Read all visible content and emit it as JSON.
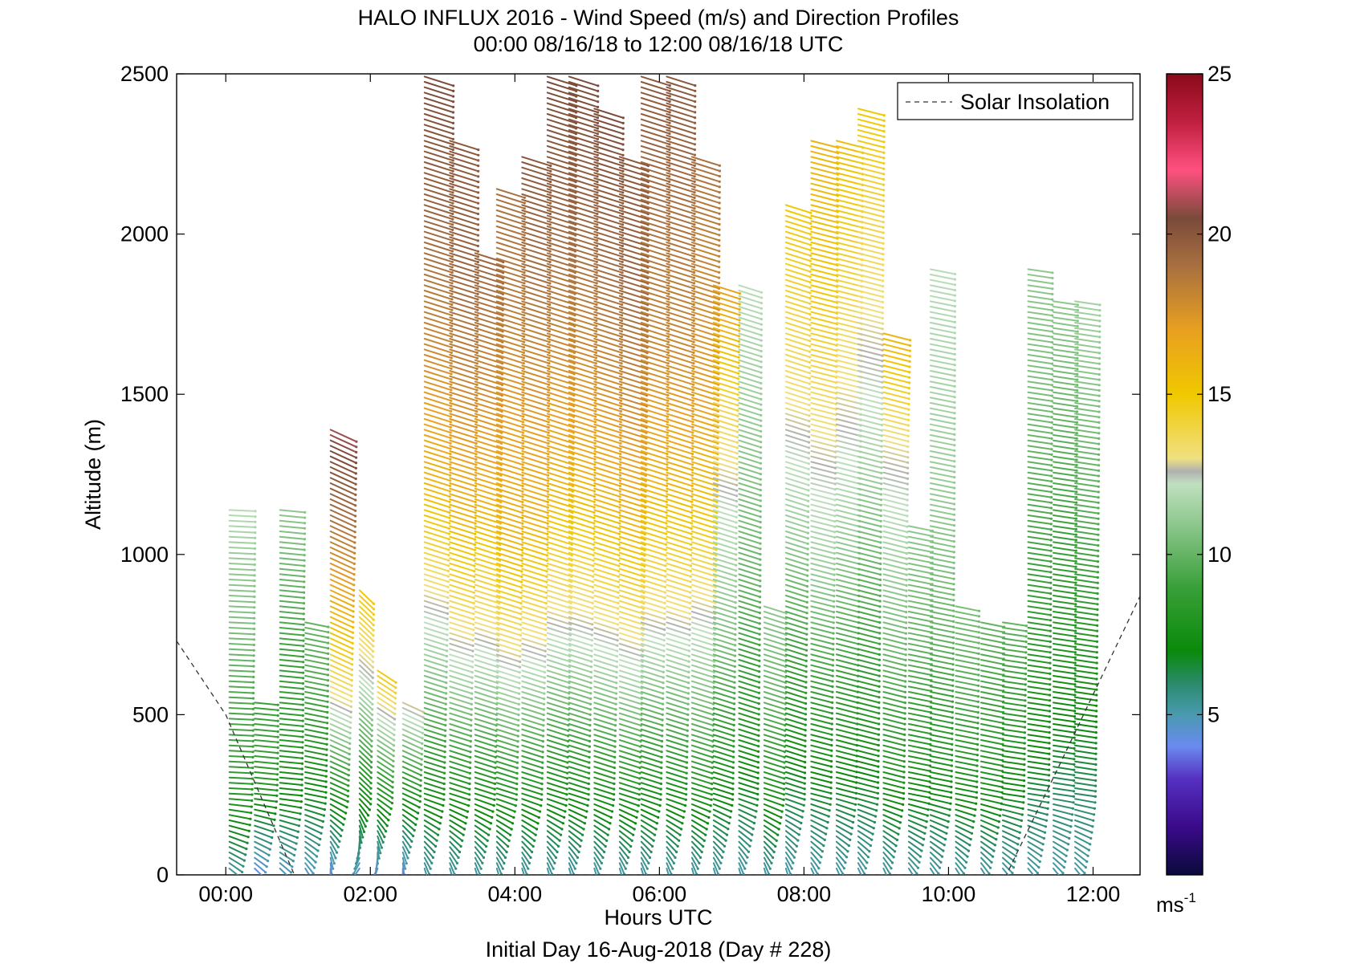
{
  "figure": {
    "title": "HALO INFLUX 2016 - Wind Speed (m/s) and Direction Profiles",
    "subtitle": "00:00 08/16/18 to 12:00 08/16/18  UTC",
    "xlabel": "Hours UTC",
    "ylabel": "Altitude (m)",
    "footer": "Initial Day 16-Aug-2018 (Day # 228)",
    "legend_label": "Solar Insolation",
    "colorbar_unit": "ms",
    "colorbar_unit_exp": "-1"
  },
  "chart_data": {
    "type": "scatter",
    "mark": "wind barbs (direction arrows colored by wind speed)",
    "title": "HALO INFLUX 2016 - Wind Speed (m/s) and Direction Profiles",
    "xlabel": "Hours UTC",
    "ylabel": "Altitude (m)",
    "xlim": [
      -0.68,
      12.65
    ],
    "ylim": [
      0,
      2500
    ],
    "x_ticks": [
      0,
      2,
      4,
      6,
      8,
      10,
      12
    ],
    "x_tick_labels": [
      "00:00",
      "02:00",
      "04:00",
      "06:00",
      "08:00",
      "10:00",
      "12:00"
    ],
    "y_ticks": [
      0,
      500,
      1000,
      1500,
      2000,
      2500
    ],
    "y_tick_labels": [
      "0",
      "500",
      "1000",
      "1500",
      "2000",
      "2500"
    ],
    "grid": false,
    "legend_position": "top-right",
    "colorbar": {
      "range": [
        0,
        25
      ],
      "ticks": [
        5,
        10,
        15,
        20,
        25
      ],
      "unit": "ms-1",
      "stops": [
        [
          0,
          "#0a0a3a"
        ],
        [
          1.5,
          "#3a0a8a"
        ],
        [
          3,
          "#5530c0"
        ],
        [
          4,
          "#6a8af0"
        ],
        [
          5,
          "#4a9ab0"
        ],
        [
          6,
          "#2a8a6a"
        ],
        [
          7,
          "#0a8a0a"
        ],
        [
          9,
          "#3aa03a"
        ],
        [
          11,
          "#90c890"
        ],
        [
          12.2,
          "#c0e0c0"
        ],
        [
          12.6,
          "#b0b0b0"
        ],
        [
          13,
          "#f0e080"
        ],
        [
          15,
          "#f0c800"
        ],
        [
          17,
          "#e8a020"
        ],
        [
          19,
          "#a87040"
        ],
        [
          20.5,
          "#7a4a3a"
        ],
        [
          22,
          "#ff5080"
        ],
        [
          23.5,
          "#c02040"
        ],
        [
          25,
          "#8a0a1a"
        ]
      ]
    },
    "solar_insolation_curve": [
      [
        -0.68,
        730
      ],
      [
        0,
        500
      ],
      [
        0.95,
        0
      ],
      [
        10.8,
        0
      ],
      [
        11.55,
        350
      ],
      [
        12.65,
        870
      ]
    ],
    "profiles": [
      {
        "time": 0.05,
        "top": 1150,
        "speed": [
          5,
          7.5,
          9,
          9.5,
          10.5,
          11,
          12
        ],
        "direction": 95
      },
      {
        "time": 0.4,
        "top": 550,
        "speed": [
          4,
          6,
          8,
          9,
          9
        ],
        "direction": 100
      },
      {
        "time": 0.75,
        "top": 1150,
        "speed": [
          4.5,
          7,
          8.5,
          9,
          10,
          11
        ],
        "direction": 100
      },
      {
        "time": 1.1,
        "top": 800,
        "speed": [
          4.5,
          6.5,
          8,
          9.5,
          10
        ],
        "direction": 110
      },
      {
        "time": 1.45,
        "top": 1400,
        "speed": [
          4,
          8,
          13,
          16,
          19,
          21
        ],
        "direction": 130
      },
      {
        "time": 1.85,
        "top": 900,
        "speed": [
          4.5,
          8,
          12,
          15
        ],
        "direction": 150
      },
      {
        "time": 2.1,
        "top": 650,
        "speed": [
          4,
          9,
          15
        ],
        "direction": 140
      },
      {
        "time": 2.45,
        "top": 550,
        "speed": [
          4,
          8,
          13
        ],
        "direction": 130
      },
      {
        "time": 2.75,
        "top": 2500,
        "speed": [
          5,
          9,
          12.5,
          16,
          18,
          19.5,
          20.5
        ],
        "direction": 120
      },
      {
        "time": 3.1,
        "top": 2300,
        "speed": [
          5,
          9,
          13,
          16,
          18,
          19.5,
          20
        ],
        "direction": 120
      },
      {
        "time": 3.45,
        "top": 1950,
        "speed": [
          5,
          9,
          13,
          16,
          18,
          19.5
        ],
        "direction": 120
      },
      {
        "time": 3.75,
        "top": 2150,
        "speed": [
          5,
          9,
          13,
          16,
          17,
          18.5,
          19
        ],
        "direction": 120
      },
      {
        "time": 4.1,
        "top": 2250,
        "speed": [
          5,
          9,
          13,
          16,
          17.5,
          19,
          20
        ],
        "direction": 120
      },
      {
        "time": 4.45,
        "top": 2500,
        "speed": [
          5,
          9,
          13,
          16,
          18,
          19.5,
          20.5
        ],
        "direction": 120
      },
      {
        "time": 4.75,
        "top": 2500,
        "speed": [
          5,
          9,
          13,
          16,
          18,
          19.5,
          20.5
        ],
        "direction": 120
      },
      {
        "time": 5.1,
        "top": 2400,
        "speed": [
          5,
          9,
          13,
          16,
          18,
          19.5,
          20.5
        ],
        "direction": 120
      },
      {
        "time": 5.45,
        "top": 2250,
        "speed": [
          5,
          9,
          13,
          16,
          18,
          19.5,
          20
        ],
        "direction": 120
      },
      {
        "time": 5.75,
        "top": 2500,
        "speed": [
          5,
          9,
          13,
          16,
          18,
          19,
          20
        ],
        "direction": 120
      },
      {
        "time": 6.1,
        "top": 2500,
        "speed": [
          5,
          9,
          13,
          16,
          18,
          19,
          20
        ],
        "direction": 120
      },
      {
        "time": 6.45,
        "top": 2250,
        "speed": [
          5,
          9,
          12,
          15,
          17,
          18,
          19
        ],
        "direction": 120
      },
      {
        "time": 6.75,
        "top": 1850,
        "speed": [
          5,
          8,
          10.5,
          12,
          14,
          17
        ],
        "direction": 120
      },
      {
        "time": 7.1,
        "top": 1850,
        "speed": [
          5,
          8,
          10,
          11,
          12
        ],
        "direction": 120
      },
      {
        "time": 7.45,
        "top": 850,
        "speed": [
          5,
          8,
          10,
          11
        ],
        "direction": 120
      },
      {
        "time": 7.75,
        "top": 2100,
        "speed": [
          5,
          8,
          11,
          13.5,
          15
        ],
        "direction": 120
      },
      {
        "time": 8.1,
        "top": 2300,
        "speed": [
          5,
          8,
          11,
          13,
          15,
          16
        ],
        "direction": 115
      },
      {
        "time": 8.45,
        "top": 2300,
        "speed": [
          5,
          8,
          10.5,
          12.5,
          14,
          15.5
        ],
        "direction": 115
      },
      {
        "time": 8.75,
        "top": 2400,
        "speed": [
          5,
          8,
          10,
          12,
          13.5,
          15
        ],
        "direction": 115
      },
      {
        "time": 9.1,
        "top": 1700,
        "speed": [
          5,
          8,
          10,
          11.5,
          13,
          16
        ],
        "direction": 115
      },
      {
        "time": 9.45,
        "top": 1100,
        "speed": [
          5,
          8,
          10,
          11
        ],
        "direction": 110
      },
      {
        "time": 9.75,
        "top": 1900,
        "speed": [
          5,
          8,
          10,
          11,
          11.5,
          12
        ],
        "direction": 110
      },
      {
        "time": 10.1,
        "top": 850,
        "speed": [
          5,
          7.5,
          9.5,
          10.5
        ],
        "direction": 110
      },
      {
        "time": 10.45,
        "top": 800,
        "speed": [
          5,
          7.5,
          9,
          10
        ],
        "direction": 110
      },
      {
        "time": 10.75,
        "top": 800,
        "speed": [
          5,
          7,
          8.5,
          10
        ],
        "direction": 105
      },
      {
        "time": 11.1,
        "top": 1900,
        "speed": [
          5,
          7,
          8.5,
          9.5,
          10.5,
          11
        ],
        "direction": 105
      },
      {
        "time": 11.45,
        "top": 1800,
        "speed": [
          5,
          6.5,
          8,
          9,
          10,
          11
        ],
        "direction": 105
      },
      {
        "time": 11.75,
        "top": 1800,
        "speed": [
          5,
          6.5,
          8,
          9.5,
          10.5,
          11.5
        ],
        "direction": 105
      }
    ]
  }
}
